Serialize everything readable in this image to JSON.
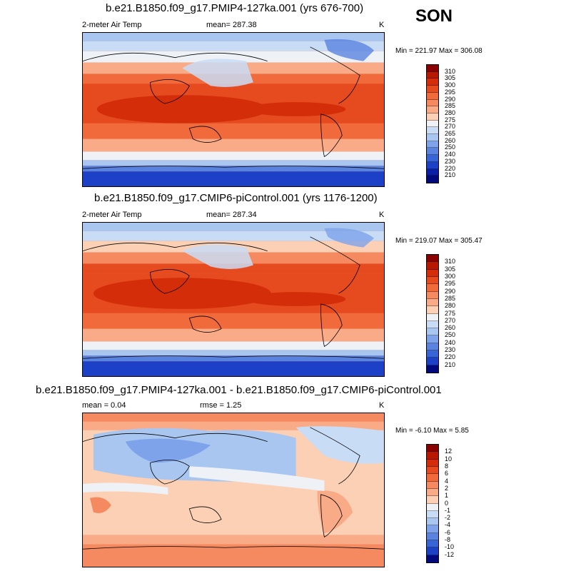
{
  "season": "SON",
  "units": "K",
  "panels": [
    {
      "title": "b.e21.B1850.f09_g17.PMIP4-127ka.001 (yrs 676-700)",
      "variable": "2-meter Air Temp",
      "mean_label": "mean= 287.38",
      "units": "K",
      "minmax": "Min = 221.97 Max = 306.08",
      "colorbar": {
        "labels": [
          "310",
          "305",
          "300",
          "295",
          "290",
          "285",
          "280",
          "275",
          "270",
          "265",
          "260",
          "250",
          "240",
          "230",
          "220",
          "210"
        ],
        "colors": [
          "#8a0000",
          "#b81800",
          "#d42d0a",
          "#e64a1f",
          "#f06a3c",
          "#f58a60",
          "#f9aa86",
          "#fcd0b5",
          "#eef2f6",
          "#c9dcf5",
          "#a9c6f0",
          "#7ea3ea",
          "#5a83e0",
          "#3865d6",
          "#1c40c6",
          "#0a1fa8",
          "#02097a"
        ]
      }
    },
    {
      "title": "b.e21.B1850.f09_g17.CMIP6-piControl.001 (yrs 1176-1200)",
      "variable": "2-meter Air Temp",
      "mean_label": "mean= 287.34",
      "units": "K",
      "minmax": "Min = 219.07 Max = 305.47",
      "colorbar": {
        "labels": [
          "310",
          "305",
          "300",
          "295",
          "290",
          "285",
          "280",
          "275",
          "270",
          "260",
          "250",
          "240",
          "230",
          "220",
          "210"
        ],
        "colors": [
          "#8a0000",
          "#b81800",
          "#d42d0a",
          "#e64a1f",
          "#f06a3c",
          "#f58a60",
          "#f9aa86",
          "#fcd0b5",
          "#eef2f6",
          "#c9dcf5",
          "#a9c6f0",
          "#7ea3ea",
          "#5a83e0",
          "#3865d6",
          "#1c40c6",
          "#02097a"
        ]
      }
    },
    {
      "title": "b.e21.B1850.f09_g17.PMIP4-127ka.001 - b.e21.B1850.f09_g17.CMIP6-piControl.001",
      "mean_label": "mean =   0.04",
      "rmse_label": "rmse =   1.25",
      "units": "K",
      "minmax": "Min =  -6.10 Max =   5.85",
      "colorbar": {
        "labels": [
          "12",
          "10",
          "8",
          "6",
          "4",
          "2",
          "1",
          "0",
          "-1",
          "-2",
          "-4",
          "-6",
          "-8",
          "-10",
          "-12"
        ],
        "colors": [
          "#8a0000",
          "#b81800",
          "#d42d0a",
          "#e64a1f",
          "#f06a3c",
          "#f58a60",
          "#f9aa86",
          "#fcd0b5",
          "#eef2f6",
          "#c9dcf5",
          "#a9c6f0",
          "#7ea3ea",
          "#5a83e0",
          "#3865d6",
          "#1c40c6",
          "#02097a"
        ]
      }
    }
  ]
}
